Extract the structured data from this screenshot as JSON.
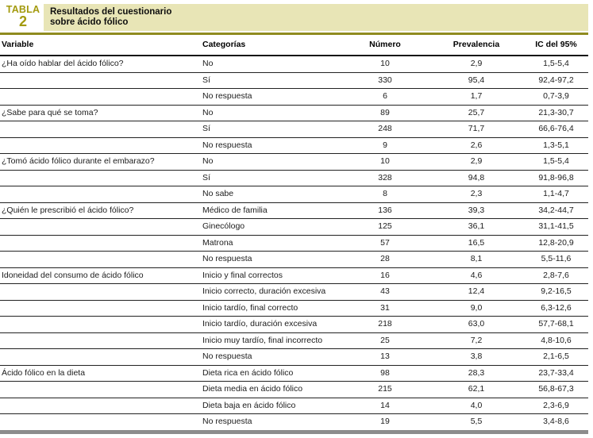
{
  "label": {
    "top": "TABLA",
    "number": "2"
  },
  "title": {
    "line1": "Resultados del cuestionario",
    "line2": "sobre ácido fólico"
  },
  "columns": [
    {
      "key": "variable",
      "label": "Variable"
    },
    {
      "key": "categoria",
      "label": "Categorías"
    },
    {
      "key": "numero",
      "label": "Número"
    },
    {
      "key": "prevalencia",
      "label": "Prevalencia"
    },
    {
      "key": "ic",
      "label": "IC del 95%"
    }
  ],
  "rows": [
    {
      "variable": "¿Ha oído hablar del ácido fólico?",
      "categoria": "No",
      "numero": "10",
      "prevalencia": "2,9",
      "ic": "1,5-5,4"
    },
    {
      "variable": "",
      "categoria": "Sí",
      "numero": "330",
      "prevalencia": "95,4",
      "ic": "92,4-97,2"
    },
    {
      "variable": "",
      "categoria": "No respuesta",
      "numero": "6",
      "prevalencia": "1,7",
      "ic": "0,7-3,9"
    },
    {
      "variable": "¿Sabe para qué se toma?",
      "categoria": "No",
      "numero": "89",
      "prevalencia": "25,7",
      "ic": "21,3-30,7"
    },
    {
      "variable": "",
      "categoria": "Sí",
      "numero": "248",
      "prevalencia": "71,7",
      "ic": "66,6-76,4"
    },
    {
      "variable": "",
      "categoria": "No respuesta",
      "numero": "9",
      "prevalencia": "2,6",
      "ic": "1,3-5,1"
    },
    {
      "variable": "¿Tomó ácido fólico durante el embarazo?",
      "categoria": "No",
      "numero": "10",
      "prevalencia": "2,9",
      "ic": "1,5-5,4"
    },
    {
      "variable": "",
      "categoria": "Sí",
      "numero": "328",
      "prevalencia": "94,8",
      "ic": "91,8-96,8"
    },
    {
      "variable": "",
      "categoria": "No sabe",
      "numero": "8",
      "prevalencia": "2,3",
      "ic": "1,1-4,7"
    },
    {
      "variable": "¿Quién le prescribió el ácido fólico?",
      "categoria": "Médico de familia",
      "numero": "136",
      "prevalencia": "39,3",
      "ic": "34,2-44,7"
    },
    {
      "variable": "",
      "categoria": "Ginecólogo",
      "numero": "125",
      "prevalencia": "36,1",
      "ic": "31,1-41,5"
    },
    {
      "variable": "",
      "categoria": "Matrona",
      "numero": "57",
      "prevalencia": "16,5",
      "ic": "12,8-20,9"
    },
    {
      "variable": "",
      "categoria": "No respuesta",
      "numero": "28",
      "prevalencia": "8,1",
      "ic": "5,5-11,6"
    },
    {
      "variable": "Idoneidad del consumo de ácido fólico",
      "categoria": "Inicio y final correctos",
      "numero": "16",
      "prevalencia": "4,6",
      "ic": "2,8-7,6"
    },
    {
      "variable": "",
      "categoria": "Inicio correcto, duración excesiva",
      "numero": "43",
      "prevalencia": "12,4",
      "ic": "9,2-16,5"
    },
    {
      "variable": "",
      "categoria": "Inicio tardío, final correcto",
      "numero": "31",
      "prevalencia": "9,0",
      "ic": "6,3-12,6"
    },
    {
      "variable": "",
      "categoria": "Inicio tardío, duración excesiva",
      "numero": "218",
      "prevalencia": "63,0",
      "ic": "57,7-68,1"
    },
    {
      "variable": "",
      "categoria": "Inicio muy tardío, final incorrecto",
      "numero": "25",
      "prevalencia": "7,2",
      "ic": "4,8-10,6"
    },
    {
      "variable": "",
      "categoria": "No respuesta",
      "numero": "13",
      "prevalencia": "3,8",
      "ic": "2,1-6,5"
    },
    {
      "variable": "Ácido fólico en la dieta",
      "categoria": "Dieta rica en ácido fólico",
      "numero": "98",
      "prevalencia": "28,3",
      "ic": "23,7-33,4"
    },
    {
      "variable": "",
      "categoria": "Dieta media en ácido fólico",
      "numero": "215",
      "prevalencia": "62,1",
      "ic": "56,8-67,3"
    },
    {
      "variable": "",
      "categoria": "Dieta baja en ácido fólico",
      "numero": "14",
      "prevalencia": "4,0",
      "ic": "2,3-6,9"
    },
    {
      "variable": "",
      "categoria": "No respuesta",
      "numero": "19",
      "prevalencia": "5,5",
      "ic": "3,4-8,6"
    }
  ],
  "colors": {
    "label_text": "#a39a0e",
    "banner_background": "#e8e5b6",
    "accent_rule": "#8f8b1f",
    "header_underline": "#141414",
    "row_separator": "#222222",
    "bottom_border": "#8c8c8c"
  }
}
